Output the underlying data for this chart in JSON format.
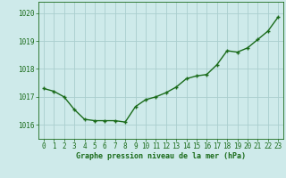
{
  "x": [
    0,
    1,
    2,
    3,
    4,
    5,
    6,
    7,
    8,
    9,
    10,
    11,
    12,
    13,
    14,
    15,
    16,
    17,
    18,
    19,
    20,
    21,
    22,
    23
  ],
  "y": [
    1017.3,
    1017.2,
    1017.0,
    1016.55,
    1016.2,
    1016.15,
    1016.15,
    1016.15,
    1016.1,
    1016.65,
    1016.9,
    1017.0,
    1017.15,
    1017.35,
    1017.65,
    1017.75,
    1017.8,
    1018.15,
    1018.65,
    1018.6,
    1018.75,
    1019.05,
    1019.35,
    1019.85
  ],
  "line_color": "#1a6b1a",
  "marker": "+",
  "marker_size": 3,
  "marker_linewidth": 1.0,
  "background_color": "#ceeaea",
  "grid_color": "#aacece",
  "xlabel": "Graphe pression niveau de la mer (hPa)",
  "xlabel_color": "#1a6b1a",
  "tick_color": "#1a6b1a",
  "ylim": [
    1015.5,
    1020.4
  ],
  "xlim": [
    -0.5,
    23.5
  ],
  "yticks": [
    1016,
    1017,
    1018,
    1019,
    1020
  ],
  "xticks": [
    0,
    1,
    2,
    3,
    4,
    5,
    6,
    7,
    8,
    9,
    10,
    11,
    12,
    13,
    14,
    15,
    16,
    17,
    18,
    19,
    20,
    21,
    22,
    23
  ],
  "linewidth": 1.0,
  "tick_fontsize": 5.5,
  "xlabel_fontsize": 6.0
}
